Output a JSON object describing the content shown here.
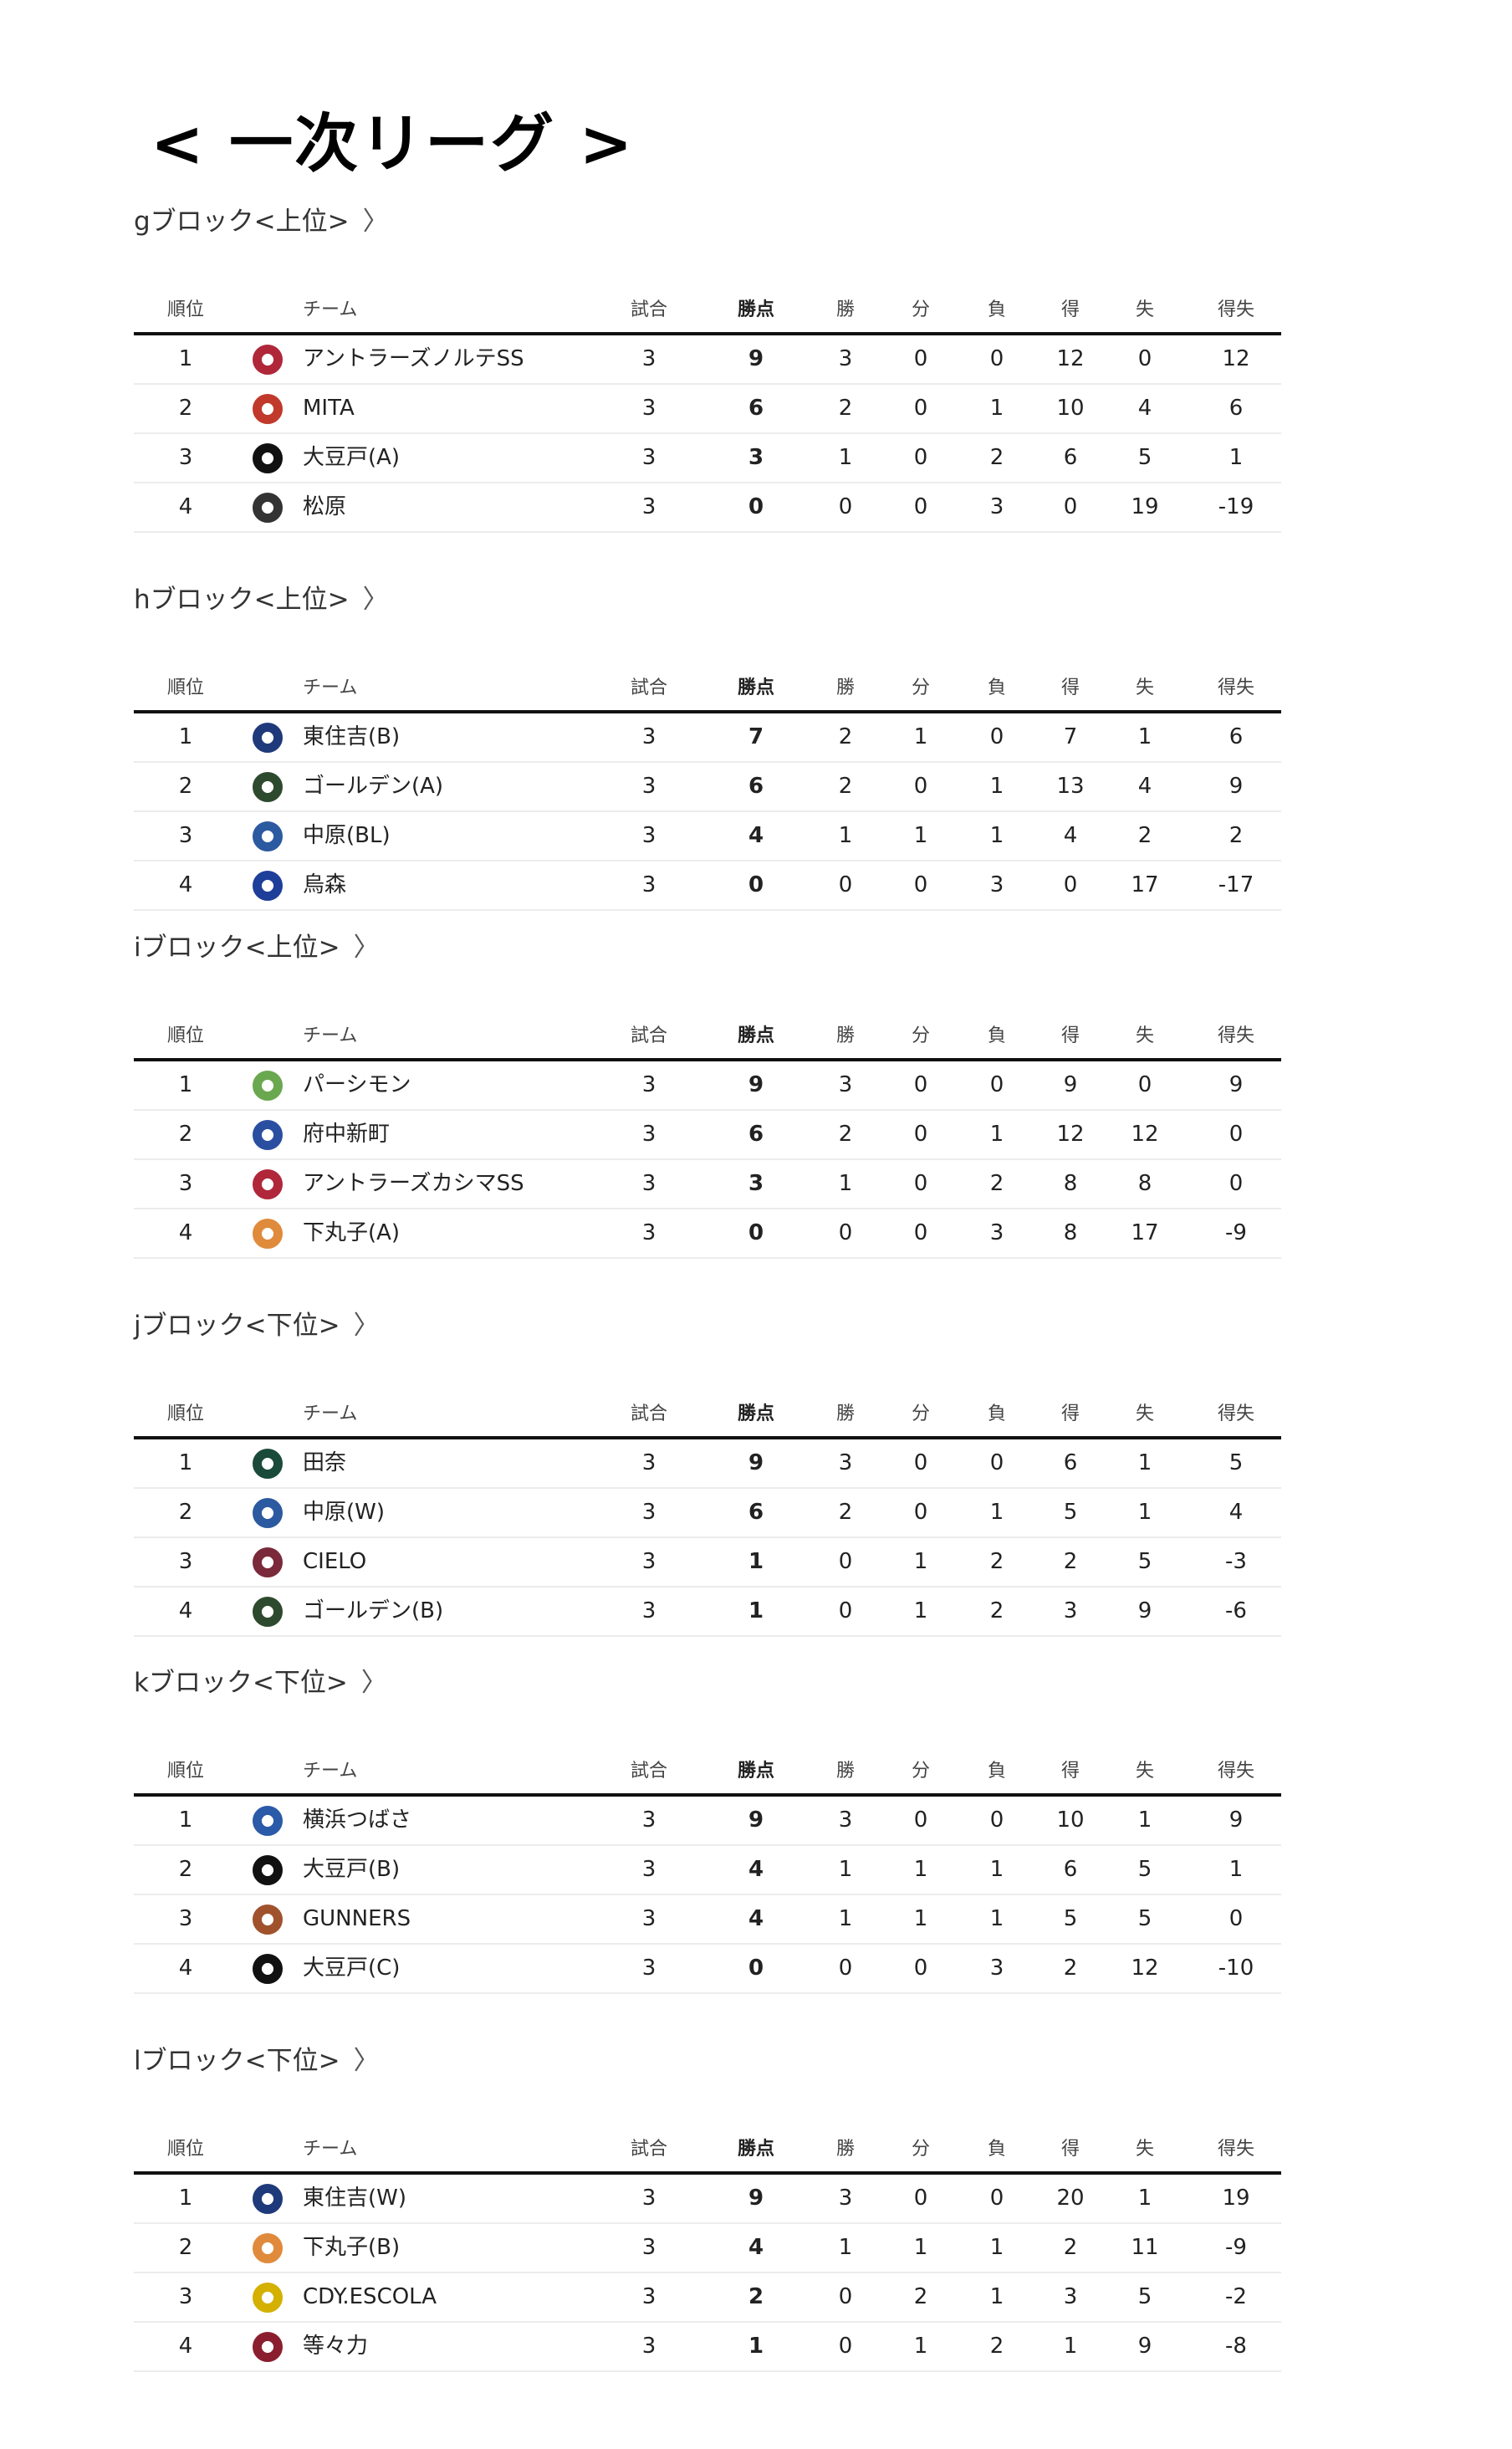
{
  "page_title": "< 一次リーグ >",
  "columns": [
    "順位",
    "チーム",
    "試合",
    "勝点",
    "勝",
    "分",
    "負",
    "得",
    "失",
    "得失"
  ],
  "blocks": [
    {
      "heading": "gブロック<上位>",
      "chevron": "〉",
      "rows": [
        {
          "rank": "1",
          "team": "アントラーズノルテSS",
          "logo": "antlers-logo",
          "color": "#b0273a",
          "stats": [
            "3",
            "9",
            "3",
            "0",
            "0",
            "12",
            "0",
            "12"
          ]
        },
        {
          "rank": "2",
          "team": "MITA",
          "logo": "mita-logo",
          "color": "#c0392b",
          "stats": [
            "3",
            "6",
            "2",
            "0",
            "1",
            "10",
            "4",
            "6"
          ]
        },
        {
          "rank": "3",
          "team": "大豆戸(A)",
          "logo": "mamedo-logo",
          "color": "#111111",
          "stats": [
            "3",
            "3",
            "1",
            "0",
            "2",
            "6",
            "5",
            "1"
          ]
        },
        {
          "rank": "4",
          "team": "松原",
          "logo": "matsubara-logo",
          "color": "#333333",
          "stats": [
            "3",
            "0",
            "0",
            "0",
            "3",
            "0",
            "19",
            "-19"
          ]
        }
      ]
    },
    {
      "heading": "hブロック<上位>",
      "chevron": "〉",
      "rows": [
        {
          "rank": "1",
          "team": "東住吉(B)",
          "logo": "higashisumiyoshi-logo",
          "color": "#1f3a7a",
          "stats": [
            "3",
            "7",
            "2",
            "1",
            "0",
            "7",
            "1",
            "6"
          ]
        },
        {
          "rank": "2",
          "team": "ゴールデン(A)",
          "logo": "golden-logo",
          "color": "#2e4a2e",
          "stats": [
            "3",
            "6",
            "2",
            "0",
            "1",
            "13",
            "4",
            "9"
          ]
        },
        {
          "rank": "3",
          "team": "中原(BL)",
          "logo": "nakahara-logo",
          "color": "#2c5aa0",
          "stats": [
            "3",
            "4",
            "1",
            "1",
            "1",
            "4",
            "2",
            "2"
          ]
        },
        {
          "rank": "4",
          "team": "烏森",
          "logo": "karasumori-logo",
          "color": "#1d3f9a",
          "stats": [
            "3",
            "0",
            "0",
            "0",
            "3",
            "0",
            "17",
            "-17"
          ]
        }
      ]
    },
    {
      "heading": "iブロック<上位>",
      "chevron": "〉",
      "rows": [
        {
          "rank": "1",
          "team": "パーシモン",
          "logo": "persimmon-logo",
          "color": "#6aa84f",
          "stats": [
            "3",
            "9",
            "3",
            "0",
            "0",
            "9",
            "0",
            "9"
          ]
        },
        {
          "rank": "2",
          "team": "府中新町",
          "logo": "fuchu-shinmachi-logo",
          "color": "#2a4fa0",
          "stats": [
            "3",
            "6",
            "2",
            "0",
            "1",
            "12",
            "12",
            "0"
          ]
        },
        {
          "rank": "3",
          "team": "アントラーズカシマSS",
          "logo": "antlers-logo",
          "color": "#b0273a",
          "stats": [
            "3",
            "3",
            "1",
            "0",
            "2",
            "8",
            "8",
            "0"
          ]
        },
        {
          "rank": "4",
          "team": "下丸子(A)",
          "logo": "shimomaruko-logo",
          "color": "#e08a3c",
          "stats": [
            "3",
            "0",
            "0",
            "0",
            "3",
            "8",
            "17",
            "-9"
          ]
        }
      ]
    },
    {
      "heading": "jブロック<下位>",
      "chevron": "〉",
      "rows": [
        {
          "rank": "1",
          "team": "田奈",
          "logo": "tana-logo",
          "color": "#1a4a3a",
          "stats": [
            "3",
            "9",
            "3",
            "0",
            "0",
            "6",
            "1",
            "5"
          ]
        },
        {
          "rank": "2",
          "team": "中原(W)",
          "logo": "nakahara-logo",
          "color": "#2c5aa0",
          "stats": [
            "3",
            "6",
            "2",
            "0",
            "1",
            "5",
            "1",
            "4"
          ]
        },
        {
          "rank": "3",
          "team": "CIELO",
          "logo": "cielo-logo",
          "color": "#7a2a3a",
          "stats": [
            "3",
            "1",
            "0",
            "1",
            "2",
            "2",
            "5",
            "-3"
          ]
        },
        {
          "rank": "4",
          "team": "ゴールデン(B)",
          "logo": "golden-logo",
          "color": "#2e4a2e",
          "stats": [
            "3",
            "1",
            "0",
            "1",
            "2",
            "3",
            "9",
            "-6"
          ]
        }
      ]
    },
    {
      "heading": "kブロック<下位>",
      "chevron": "〉",
      "rows": [
        {
          "rank": "1",
          "team": "横浜つばさ",
          "logo": "yokohama-tsubasa-logo",
          "color": "#2a5aa8",
          "stats": [
            "3",
            "9",
            "3",
            "0",
            "0",
            "10",
            "1",
            "9"
          ]
        },
        {
          "rank": "2",
          "team": "大豆戸(B)",
          "logo": "mamedo-logo",
          "color": "#111111",
          "stats": [
            "3",
            "4",
            "1",
            "1",
            "1",
            "6",
            "5",
            "1"
          ]
        },
        {
          "rank": "3",
          "team": "GUNNERS",
          "logo": "gunners-logo",
          "color": "#a0522d",
          "stats": [
            "3",
            "4",
            "1",
            "1",
            "1",
            "5",
            "5",
            "0"
          ]
        },
        {
          "rank": "4",
          "team": "大豆戸(C)",
          "logo": "mamedo-logo",
          "color": "#111111",
          "stats": [
            "3",
            "0",
            "0",
            "0",
            "3",
            "2",
            "12",
            "-10"
          ]
        }
      ]
    },
    {
      "heading": "lブロック<下位>",
      "chevron": "〉",
      "rows": [
        {
          "rank": "1",
          "team": "東住吉(W)",
          "logo": "higashisumiyoshi-logo",
          "color": "#1f3a7a",
          "stats": [
            "3",
            "9",
            "3",
            "0",
            "0",
            "20",
            "1",
            "19"
          ]
        },
        {
          "rank": "2",
          "team": "下丸子(B)",
          "logo": "shimomaruko-logo",
          "color": "#e08a3c",
          "stats": [
            "3",
            "4",
            "1",
            "1",
            "1",
            "2",
            "11",
            "-9"
          ]
        },
        {
          "rank": "3",
          "team": "CDY.ESCOLA",
          "logo": "cdy-escola-logo",
          "color": "#d4b000",
          "stats": [
            "3",
            "2",
            "0",
            "2",
            "1",
            "3",
            "5",
            "-2"
          ]
        },
        {
          "rank": "4",
          "team": "等々力",
          "logo": "todoroki-logo",
          "color": "#8b1e2e",
          "stats": [
            "3",
            "1",
            "0",
            "1",
            "2",
            "1",
            "9",
            "-8"
          ]
        }
      ]
    }
  ]
}
